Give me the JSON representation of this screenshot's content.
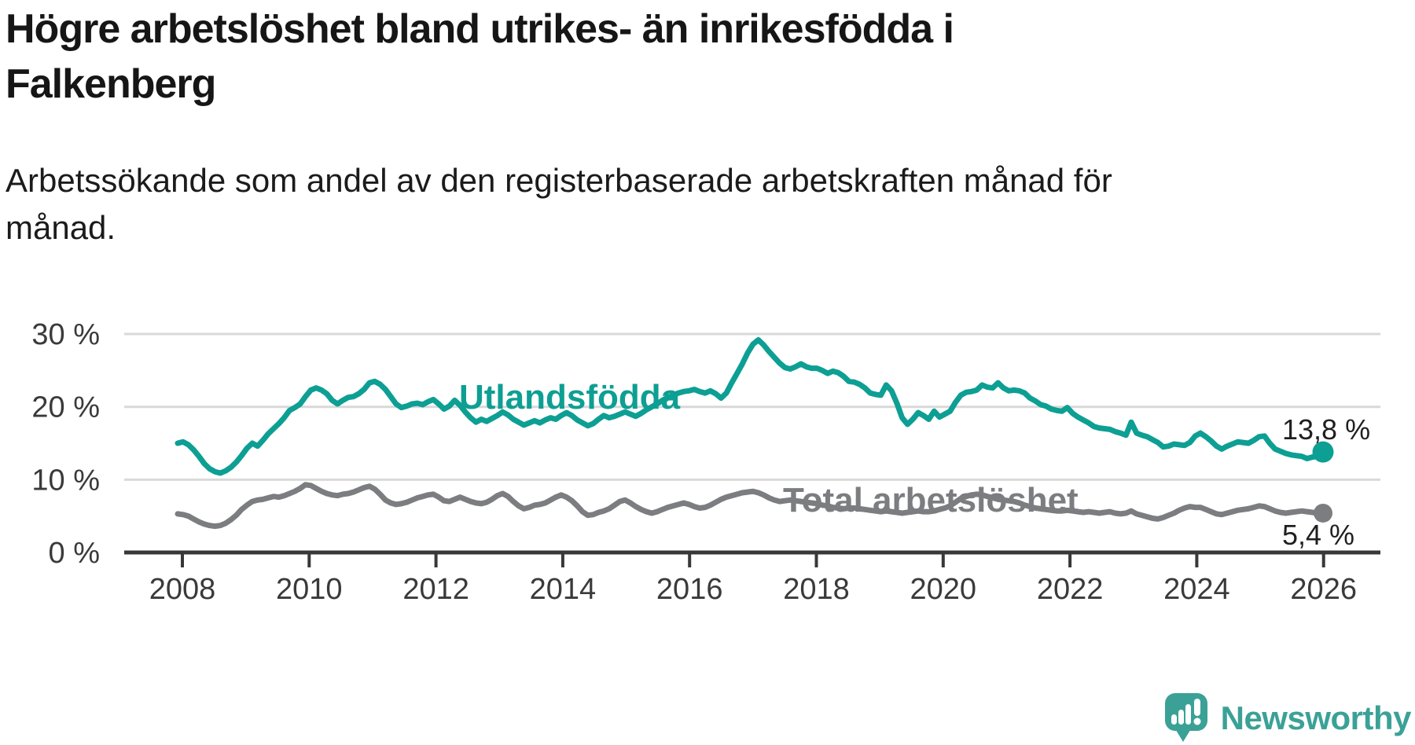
{
  "title": {
    "lines": {
      "0": "Högre arbetslöshet bland utrikes- än inrikesfödda i",
      "1": "Falkenberg"
    }
  },
  "subtitle": {
    "lines": {
      "0": "Arbetssökande som andel av den registerbaserade arbetskraften månad för",
      "1": "månad."
    }
  },
  "logo": {
    "text": "Newsworthy",
    "icon": "newsworthy-speech-bubble-chart-icon",
    "color": "#3ba197"
  },
  "chart_data": {
    "type": "line",
    "title": "Högre arbetslöshet bland utrikes- än inrikesfödda i Falkenberg",
    "subtitle": "Arbetssökande som andel av den registerbaserade arbetskraften månad för månad.",
    "x_unit": "month",
    "x_start_year": 2008,
    "x_end_year": 2026,
    "x_ticks": [
      2008,
      2010,
      2012,
      2014,
      2016,
      2018,
      2020,
      2022,
      2024,
      2026
    ],
    "y_ticks": [
      {
        "label": "30 %",
        "value": 30
      },
      {
        "label": "20 %",
        "value": 20
      },
      {
        "label": "10 %",
        "value": 10
      },
      {
        "label": "0 %",
        "value": 0
      }
    ],
    "ylim": [
      0,
      31.5
    ],
    "grid": "horizontal",
    "legend_position": "inline-labels",
    "colors": {
      "utlandsfodda": "#0d9f93",
      "total": "#7c7d81",
      "grid": "#d9d9d9",
      "axis": "#383838",
      "axis_text": "#3a3a3a"
    },
    "series": [
      {
        "name": "Utlandsfödda",
        "color": "#0d9f93",
        "end_label": "13,8 %",
        "end_value": 13.8,
        "values": [
          15.0,
          15.2,
          14.8,
          14.1,
          13.2,
          12.2,
          11.5,
          11.1,
          10.9,
          11.2,
          11.7,
          12.4,
          13.3,
          14.3,
          15.0,
          14.6,
          15.4,
          16.3,
          17.0,
          17.7,
          18.5,
          19.5,
          19.9,
          20.4,
          21.4,
          22.3,
          22.6,
          22.3,
          21.8,
          20.9,
          20.4,
          20.9,
          21.3,
          21.4,
          21.8,
          22.4,
          23.3,
          23.5,
          23.1,
          22.4,
          21.4,
          20.4,
          19.9,
          20.1,
          20.4,
          20.5,
          20.3,
          20.7,
          21.0,
          20.4,
          19.7,
          20.1,
          20.9,
          20.2,
          19.3,
          18.5,
          17.9,
          18.3,
          18.0,
          18.4,
          18.8,
          19.3,
          18.9,
          18.3,
          17.9,
          17.5,
          17.8,
          18.1,
          17.8,
          18.2,
          18.5,
          18.3,
          18.8,
          19.2,
          18.8,
          18.2,
          17.8,
          17.4,
          17.7,
          18.3,
          18.8,
          18.5,
          18.7,
          19.0,
          19.3,
          19.0,
          18.7,
          19.1,
          19.6,
          20.0,
          20.4,
          20.9,
          21.3,
          21.6,
          21.9,
          22.1,
          22.2,
          22.4,
          22.1,
          21.9,
          22.2,
          21.8,
          21.2,
          21.9,
          23.3,
          24.6,
          25.9,
          27.4,
          28.6,
          29.2,
          28.5,
          27.6,
          26.8,
          26.0,
          25.4,
          25.2,
          25.5,
          25.9,
          25.5,
          25.3,
          25.3,
          25.0,
          24.6,
          24.9,
          24.7,
          24.2,
          23.5,
          23.4,
          23.1,
          22.6,
          21.9,
          21.7,
          21.6,
          23.0,
          22.2,
          20.5,
          18.5,
          17.6,
          18.3,
          19.2,
          18.8,
          18.3,
          19.4,
          18.6,
          19.0,
          19.4,
          20.6,
          21.6,
          22.0,
          22.1,
          22.3,
          23.0,
          22.7,
          22.6,
          23.3,
          22.6,
          22.2,
          22.3,
          22.2,
          21.9,
          21.2,
          20.8,
          20.3,
          20.1,
          19.7,
          19.5,
          19.4,
          19.9,
          19.1,
          18.6,
          18.2,
          17.8,
          17.3,
          17.1,
          17.0,
          16.9,
          16.6,
          16.4,
          16.1,
          17.9,
          16.4,
          16.1,
          15.9,
          15.5,
          15.1,
          14.5,
          14.6,
          14.9,
          14.8,
          14.7,
          15.1,
          16.0,
          16.4,
          15.9,
          15.3,
          14.6,
          14.2,
          14.6,
          14.9,
          15.2,
          15.1,
          15.0,
          15.4,
          15.9,
          16.0,
          15.0,
          14.2,
          13.9,
          13.6,
          13.4,
          13.3,
          13.2,
          12.9,
          13.1,
          13.2,
          13.8
        ]
      },
      {
        "name": "Total arbetslöshet",
        "color": "#7c7d81",
        "end_label": "5,4 %",
        "end_value": 5.4,
        "values": [
          5.3,
          5.2,
          5.0,
          4.6,
          4.2,
          3.9,
          3.7,
          3.6,
          3.7,
          4.0,
          4.5,
          5.1,
          5.9,
          6.5,
          7.0,
          7.2,
          7.3,
          7.5,
          7.7,
          7.6,
          7.8,
          8.1,
          8.4,
          8.8,
          9.3,
          9.2,
          8.8,
          8.4,
          8.1,
          7.9,
          7.8,
          8.0,
          8.1,
          8.3,
          8.6,
          8.9,
          9.1,
          8.7,
          8.0,
          7.2,
          6.8,
          6.6,
          6.7,
          6.9,
          7.2,
          7.5,
          7.7,
          7.9,
          8.0,
          7.6,
          7.1,
          7.0,
          7.3,
          7.6,
          7.3,
          7.0,
          6.8,
          6.7,
          6.9,
          7.3,
          7.8,
          8.1,
          7.7,
          7.0,
          6.4,
          6.0,
          6.2,
          6.5,
          6.6,
          6.8,
          7.2,
          7.6,
          7.9,
          7.6,
          7.1,
          6.4,
          5.6,
          5.1,
          5.2,
          5.5,
          5.7,
          6.0,
          6.5,
          7.0,
          7.2,
          6.8,
          6.3,
          5.9,
          5.6,
          5.4,
          5.6,
          5.9,
          6.2,
          6.4,
          6.6,
          6.8,
          6.6,
          6.3,
          6.1,
          6.2,
          6.5,
          6.9,
          7.3,
          7.6,
          7.8,
          8.0,
          8.2,
          8.3,
          8.4,
          8.2,
          7.9,
          7.5,
          7.2,
          7.0,
          7.1,
          7.2,
          7.1,
          7.0,
          6.9,
          6.8,
          6.7,
          6.5,
          6.4,
          6.2,
          6.1,
          6.0,
          6.1,
          6.1,
          6.0,
          5.9,
          5.8,
          5.7,
          5.6,
          5.7,
          5.6,
          5.5,
          5.4,
          5.5,
          5.6,
          5.7,
          5.6,
          5.6,
          5.7,
          5.9,
          6.1,
          6.4,
          6.9,
          7.4,
          7.7,
          7.9,
          8.0,
          7.9,
          7.7,
          7.5,
          7.3,
          7.2,
          7.1,
          7.0,
          6.8,
          6.5,
          6.3,
          6.1,
          6.0,
          5.9,
          5.8,
          5.7,
          5.7,
          5.8,
          5.7,
          5.6,
          5.5,
          5.6,
          5.5,
          5.4,
          5.5,
          5.6,
          5.4,
          5.3,
          5.4,
          5.7,
          5.3,
          5.1,
          4.9,
          4.7,
          4.6,
          4.8,
          5.1,
          5.4,
          5.8,
          6.1,
          6.3,
          6.2,
          6.2,
          5.9,
          5.6,
          5.3,
          5.2,
          5.4,
          5.6,
          5.8,
          5.9,
          6.0,
          6.2,
          6.4,
          6.3,
          6.0,
          5.7,
          5.5,
          5.4,
          5.5,
          5.6,
          5.7,
          5.6,
          5.5,
          5.4,
          5.4
        ]
      }
    ]
  }
}
